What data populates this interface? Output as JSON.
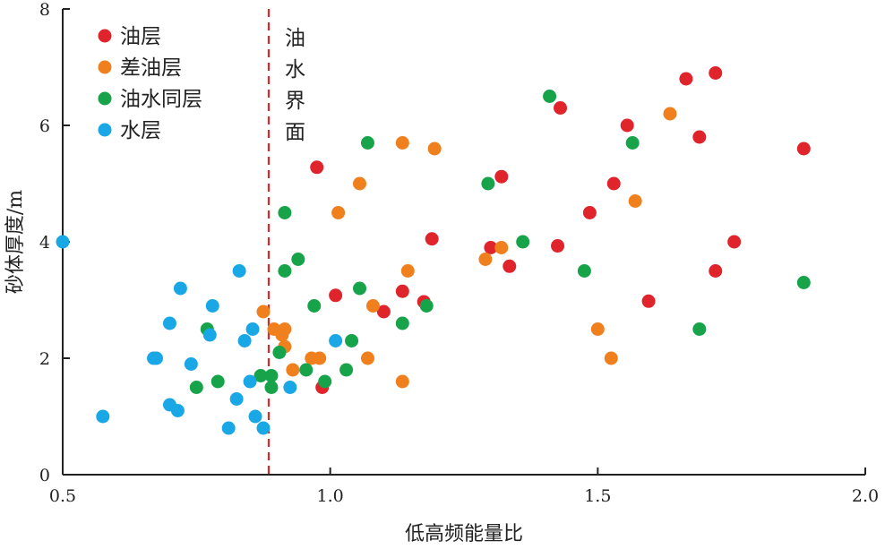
{
  "chart_data": {
    "type": "scatter",
    "xlabel": "低高频能量比",
    "ylabel": "砂体厚度/m",
    "xlim": [
      0.5,
      2.0
    ],
    "ylim": [
      0,
      8
    ],
    "xticks": [
      "0.5",
      "1.0",
      "1.5",
      "2.0"
    ],
    "yticks": [
      "0",
      "2",
      "4",
      "6",
      "8"
    ],
    "grid": false,
    "legend_position": "top-left",
    "annotation": {
      "text": [
        "油",
        "水",
        "界",
        "面"
      ],
      "x": 0.885,
      "color": "#d42a2a"
    },
    "series": [
      {
        "name": "油层",
        "color": "#e0242c",
        "points": [
          [
            0.975,
            5.28
          ],
          [
            1.01,
            3.08
          ],
          [
            0.985,
            1.5
          ],
          [
            1.1,
            2.8
          ],
          [
            1.135,
            3.15
          ],
          [
            1.175,
            2.97
          ],
          [
            1.19,
            4.05
          ],
          [
            1.3,
            3.9
          ],
          [
            1.32,
            5.12
          ],
          [
            1.335,
            3.58
          ],
          [
            1.425,
            3.93
          ],
          [
            1.43,
            6.3
          ],
          [
            1.485,
            4.5
          ],
          [
            1.53,
            5.0
          ],
          [
            1.555,
            6.0
          ],
          [
            1.595,
            2.98
          ],
          [
            1.665,
            6.8
          ],
          [
            1.69,
            5.8
          ],
          [
            1.72,
            6.9
          ],
          [
            1.72,
            3.5
          ],
          [
            1.755,
            4.0
          ],
          [
            1.885,
            5.6
          ]
        ]
      },
      {
        "name": "差油层",
        "color": "#f07f1e",
        "points": [
          [
            0.875,
            2.8
          ],
          [
            0.895,
            2.5
          ],
          [
            0.91,
            2.4
          ],
          [
            0.915,
            2.5
          ],
          [
            0.915,
            2.2
          ],
          [
            0.93,
            1.8
          ],
          [
            0.965,
            2.0
          ],
          [
            0.98,
            2.0
          ],
          [
            1.015,
            4.5
          ],
          [
            1.055,
            5.0
          ],
          [
            1.07,
            2.0
          ],
          [
            1.08,
            2.9
          ],
          [
            1.135,
            5.7
          ],
          [
            1.135,
            1.6
          ],
          [
            1.145,
            3.5
          ],
          [
            1.195,
            5.6
          ],
          [
            1.29,
            3.7
          ],
          [
            1.32,
            3.9
          ],
          [
            1.5,
            2.5
          ],
          [
            1.525,
            2.0
          ],
          [
            1.57,
            4.7
          ],
          [
            1.635,
            6.2
          ]
        ]
      },
      {
        "name": "油水同层",
        "color": "#16a34a",
        "points": [
          [
            0.75,
            1.5
          ],
          [
            0.77,
            2.5
          ],
          [
            0.79,
            1.6
          ],
          [
            0.87,
            1.7
          ],
          [
            0.89,
            1.7
          ],
          [
            0.89,
            1.5
          ],
          [
            0.905,
            2.1
          ],
          [
            0.915,
            3.5
          ],
          [
            0.915,
            4.5
          ],
          [
            0.94,
            3.7
          ],
          [
            0.955,
            1.8
          ],
          [
            0.97,
            2.9
          ],
          [
            0.99,
            1.6
          ],
          [
            1.03,
            1.8
          ],
          [
            1.04,
            2.3
          ],
          [
            1.055,
            3.2
          ],
          [
            1.07,
            5.7
          ],
          [
            1.135,
            2.6
          ],
          [
            1.18,
            2.9
          ],
          [
            1.295,
            5.0
          ],
          [
            1.36,
            4.0
          ],
          [
            1.41,
            6.5
          ],
          [
            1.475,
            3.5
          ],
          [
            1.565,
            5.7
          ],
          [
            1.69,
            2.5
          ],
          [
            1.885,
            3.3
          ]
        ]
      },
      {
        "name": "水层",
        "color": "#1aa7e6",
        "points": [
          [
            0.5,
            4.0
          ],
          [
            0.575,
            1.0
          ],
          [
            0.67,
            2.0
          ],
          [
            0.675,
            2.0
          ],
          [
            0.7,
            1.2
          ],
          [
            0.7,
            2.6
          ],
          [
            0.715,
            1.1
          ],
          [
            0.72,
            3.2
          ],
          [
            0.74,
            1.9
          ],
          [
            0.775,
            2.4
          ],
          [
            0.78,
            2.9
          ],
          [
            0.81,
            0.8
          ],
          [
            0.825,
            1.3
          ],
          [
            0.83,
            3.5
          ],
          [
            0.84,
            2.3
          ],
          [
            0.85,
            1.6
          ],
          [
            0.855,
            2.5
          ],
          [
            0.86,
            1.0
          ],
          [
            0.875,
            0.8
          ],
          [
            0.925,
            1.5
          ],
          [
            1.01,
            2.3
          ]
        ]
      }
    ]
  }
}
